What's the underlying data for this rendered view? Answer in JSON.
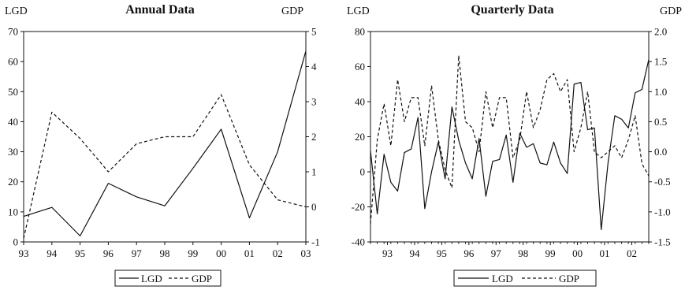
{
  "chart_data": [
    {
      "type": "line",
      "title": "Annual Data",
      "left_axis_label": "LGD",
      "right_axis_label": "GDP",
      "x_tick_labels": [
        "93",
        "94",
        "95",
        "96",
        "97",
        "98",
        "99",
        "00",
        "01",
        "02",
        "03"
      ],
      "left_ylim": [
        0,
        70
      ],
      "left_yticks": [
        0,
        10,
        20,
        30,
        40,
        50,
        60,
        70
      ],
      "right_ylim": [
        -1,
        5
      ],
      "right_yticks": [
        -1,
        0,
        1,
        2,
        3,
        4,
        5
      ],
      "legend": [
        "LGD",
        "GDP"
      ],
      "legend_placement": "bottom",
      "grid": false,
      "series": [
        {
          "name": "LGD",
          "axis": "left",
          "style": "solid",
          "values": [
            8.5,
            11.5,
            2,
            19.5,
            15,
            12,
            24.5,
            37.5,
            8,
            30,
            63.5
          ]
        },
        {
          "name": "GDP",
          "axis": "right",
          "style": "dashed",
          "values": [
            -0.9,
            2.7,
            1.95,
            1.0,
            1.8,
            2.0,
            2.0,
            3.2,
            1.2,
            0.2,
            0.0
          ]
        }
      ]
    },
    {
      "type": "line",
      "title": "Quarterly Data",
      "left_axis_label": "LGD",
      "right_axis_label": "GDP",
      "x_tick_labels": [
        "93",
        "94",
        "95",
        "96",
        "97",
        "98",
        "99",
        "00",
        "01",
        "02"
      ],
      "left_ylim": [
        -40,
        80
      ],
      "left_yticks": [
        -40,
        -20,
        0,
        20,
        40,
        60,
        80
      ],
      "right_ylim": [
        -1.5,
        2.0
      ],
      "right_yticks": [
        -1.5,
        -1.0,
        -0.5,
        0.0,
        0.5,
        1.0,
        1.5,
        2.0
      ],
      "legend": [
        "LGD",
        "GDP"
      ],
      "legend_placement": "bottom",
      "grid": false,
      "series": [
        {
          "name": "LGD",
          "axis": "left",
          "style": "solid",
          "values": [
            12,
            -24,
            10,
            -6,
            -11,
            11,
            13,
            31,
            -21,
            0,
            17,
            -4,
            37,
            18,
            5,
            -4,
            19,
            -14,
            6,
            7,
            21,
            -6,
            22,
            14,
            16,
            5,
            4,
            17,
            5,
            -1,
            50,
            51,
            24,
            25,
            -33,
            5,
            32,
            30,
            25,
            45,
            47,
            64
          ]
        },
        {
          "name": "GDP",
          "axis": "right",
          "style": "dashed",
          "values": [
            -1.2,
            0.2,
            0.8,
            0.1,
            1.2,
            0.5,
            0.9,
            0.9,
            0.1,
            1.1,
            0.2,
            -0.3,
            -0.6,
            1.6,
            0.5,
            0.4,
            0.0,
            1.0,
            0.4,
            0.9,
            0.9,
            -0.1,
            0.2,
            1.0,
            0.4,
            0.7,
            1.2,
            1.3,
            1.0,
            1.2,
            0.0,
            0.4,
            1.0,
            0.0,
            -0.1,
            0.0,
            0.1,
            -0.1,
            0.2,
            0.6,
            -0.2,
            -0.4
          ]
        }
      ]
    }
  ]
}
